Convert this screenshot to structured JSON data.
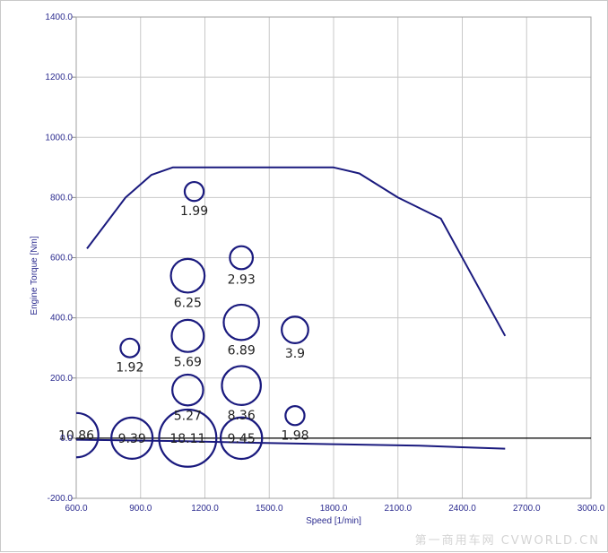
{
  "chart_data": {
    "type": "scatter",
    "xlabel": "Speed [1/min]",
    "ylabel": "Engine Torque [Nm]",
    "xlim": [
      600,
      3000
    ],
    "ylim": [
      -200,
      1400
    ],
    "x_ticks": [
      "600.0",
      "900.0",
      "1200.0",
      "1500.0",
      "1800.0",
      "2100.0",
      "2400.0",
      "2700.0",
      "3000.0"
    ],
    "y_ticks": [
      "-200.0",
      "0.0",
      "200.0",
      "400.0",
      "600.0",
      "800.0",
      "1000.0",
      "1200.0",
      "1400.0"
    ],
    "grid": true,
    "colors": {
      "series": "#1a1a7e",
      "grid": "#c8c8c8",
      "zero_line": "#000000",
      "tick": "#2b2b8f"
    },
    "lines": [
      {
        "points": [
          [
            650,
            630
          ],
          [
            830,
            800
          ],
          [
            950,
            875
          ],
          [
            1050,
            900
          ],
          [
            1800,
            900
          ],
          [
            1920,
            880
          ],
          [
            2100,
            800
          ],
          [
            2300,
            730
          ],
          [
            2600,
            340
          ]
        ]
      },
      {
        "points": [
          [
            600,
            -5
          ],
          [
            1100,
            -10
          ],
          [
            1400,
            -15
          ],
          [
            1800,
            -20
          ],
          [
            2200,
            -25
          ],
          [
            2600,
            -35
          ]
        ]
      }
    ],
    "bubbles": [
      {
        "x": 600,
        "y": 10,
        "value": "10.86"
      },
      {
        "x": 860,
        "y": 0,
        "value": "9.39"
      },
      {
        "x": 1120,
        "y": 0,
        "value": "18.11"
      },
      {
        "x": 1370,
        "y": 0,
        "value": "9.45"
      },
      {
        "x": 1120,
        "y": 160,
        "value": "5.27"
      },
      {
        "x": 1370,
        "y": 175,
        "value": "8.36"
      },
      {
        "x": 1620,
        "y": 75,
        "value": "1.98"
      },
      {
        "x": 1120,
        "y": 340,
        "value": "5.69"
      },
      {
        "x": 1370,
        "y": 385,
        "value": "6.89"
      },
      {
        "x": 1620,
        "y": 360,
        "value": "3.9"
      },
      {
        "x": 1120,
        "y": 540,
        "value": "6.25"
      },
      {
        "x": 1370,
        "y": 600,
        "value": "2.93"
      },
      {
        "x": 850,
        "y": 300,
        "value": "1.92"
      },
      {
        "x": 1150,
        "y": 820,
        "value": "1.99"
      }
    ]
  },
  "watermark": "第一商用车网 CVWORLD.CN"
}
